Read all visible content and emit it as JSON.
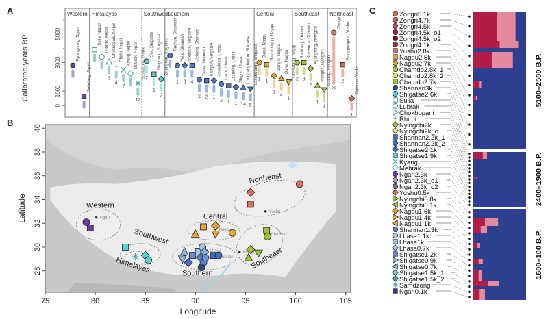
{
  "figure": {
    "panel_labels": [
      "A",
      "B",
      "C"
    ]
  },
  "chart_data": [
    {
      "panel": "A",
      "type": "scatter",
      "ylabel": "Calibrated years BP",
      "yticks": [
        0,
        1000,
        3000,
        5000
      ],
      "ylim": [
        -800,
        6800
      ],
      "regions": [
        {
          "name": "Western",
          "color": "#6a3fa0",
          "sites": [
            {
              "label": "Piyangdong, Ngari",
              "age": 2800,
              "shape": "circle",
              "n": ""
            },
            {
              "label": "Gelintang, Ngari",
              "age": 650,
              "shape": "square",
              "n": ""
            }
          ]
        },
        {
          "name": "Himalayas",
          "color": "#4aa3a0",
          "sites": [
            {
              "label": "Suila, Nepal",
              "age": 3900,
              "shape": "square-open",
              "n": ""
            },
            {
              "label": "Lubrak, Nepal",
              "age": 3400,
              "shape": "circle-open",
              "n": ""
            },
            {
              "label": "Chokhopani, Nepal",
              "age": 3050,
              "shape": "triangle-open",
              "n": "3"
            },
            {
              "label": "Rhirhi, Nepal",
              "age": 2750,
              "shape": "plus",
              "n": "4"
            },
            {
              "label": "Kyang, Nepal",
              "age": 2500,
              "shape": "cross",
              "n": "7"
            },
            {
              "label": "Mebrak, Nepal",
              "age": 2250,
              "shape": "diamond-open",
              "n": ""
            },
            {
              "label": "Samdzong, Nepal",
              "age": 1550,
              "shape": "star",
              "n": "12"
            }
          ]
        },
        {
          "name": "Southwest",
          "color": "#5ccfd6",
          "sites": [
            {
              "label": "Sila, Shigatse",
              "age": 3100,
              "shape": "circle",
              "n": "2"
            },
            {
              "label": "Dingdong, Shigatse",
              "age": 2200,
              "shape": "square",
              "n": "1"
            },
            {
              "label": "Zhangcun, Shigatse",
              "age": 1850,
              "shape": "diamond",
              "n": "2"
            }
          ]
        },
        {
          "name": "Southern",
          "color": "#4a78c8",
          "sites": [
            {
              "label": "Tingkun, Shannan",
              "age": 3500,
              "shape": "circle",
              "n": ""
            },
            {
              "label": "Yoisi, Shannan",
              "age": 2800,
              "shape": "circle",
              "n": "1"
            },
            {
              "label": "Nolaqun, Shigatse",
              "age": 2800,
              "shape": "diamond",
              "n": "3"
            },
            {
              "label": "Jiekang, Shannan",
              "age": 2800,
              "shape": "square",
              "n": "4"
            },
            {
              "label": "Dana, Shannan",
              "age": 1800,
              "shape": "circle",
              "n": "2"
            },
            {
              "label": "Rangjun, Shigatse",
              "age": 1750,
              "shape": "square",
              "n": "2"
            },
            {
              "label": "Jiewulang, Lhasa",
              "age": 1750,
              "shape": "diamond",
              "n": "1"
            },
            {
              "label": "Lajue, Lhasa",
              "age": 1500,
              "shape": "circle",
              "n": "2"
            },
            {
              "label": "Dazhong, Lhasa",
              "age": 1400,
              "shape": "square",
              "n": "1"
            },
            {
              "label": "Shigou, Lhasa",
              "age": 1300,
              "shape": "diamond",
              "n": "1"
            },
            {
              "label": "Longgangbudun, Shigatse",
              "age": 1250,
              "shape": "triangle",
              "n": "14"
            },
            {
              "label": "Lakuhudngo, Shigatse",
              "age": 1150,
              "shape": "triangle-down",
              "n": "5"
            }
          ]
        },
        {
          "name": "Central",
          "color": "#e6a73a",
          "sites": [
            {
              "label": "Ouxui, Nagqu",
              "age": 3000,
              "shape": "circle",
              "n": "1"
            },
            {
              "label": "Bulaxiongqu, Nagqu",
              "age": 2850,
              "shape": "square",
              "n": "1"
            },
            {
              "label": "Gangxi, Nagqu",
              "age": 2100,
              "shape": "diamond",
              "n": "1"
            },
            {
              "label": "Oune, Nagqu",
              "age": 1900,
              "shape": "triangle",
              "n": "4"
            },
            {
              "label": "Chasutang, Nagqu",
              "age": 1650,
              "shape": "triangle-down",
              "n": "1"
            }
          ]
        },
        {
          "name": "Southeast",
          "color": "#9cc33e",
          "sites": [
            {
              "label": "Reiblong, Chamdo",
              "age": 3000,
              "shape": "circle",
              "n": "2"
            },
            {
              "label": "Xiaoenda, Chamdo",
              "age": 3000,
              "shape": "square",
              "n": "3"
            },
            {
              "label": "Agangrong, Nyingchi",
              "age": 2600,
              "shape": "diamond",
              "n": "2"
            },
            {
              "label": "Kangmi, Nyingchi",
              "age": 1400,
              "shape": "triangle",
              "n": "1"
            },
            {
              "label": "Gulong, Nyingchi",
              "age": 1100,
              "shape": "triangle-down",
              "n": "1"
            }
          ]
        },
        {
          "name": "Northeast",
          "color": "#d9705a",
          "sites": [
            {
              "label": "Zongri",
              "age": 5100,
              "shape": "circle",
              "n": "22"
            },
            {
              "label": "Pulaggongma, Yushu",
              "age": 2850,
              "shape": "square",
              "n": "2"
            },
            {
              "label": "Galacun, Yushu",
              "age": 500,
              "shape": "diamond",
              "n": "1"
            }
          ]
        }
      ]
    },
    {
      "panel": "B",
      "type": "scatter",
      "xlabel": "Longitude",
      "ylabel": "Latitude",
      "xlim": [
        75,
        105.5
      ],
      "ylim": [
        26.2,
        40.3
      ],
      "xticks": [
        75,
        80,
        85,
        90,
        95,
        100,
        105
      ],
      "yticks": [
        28,
        30,
        32,
        34,
        36,
        38,
        40
      ],
      "region_labels": [
        {
          "name": "Western",
          "lon": 80.5,
          "lat": 33.3,
          "rot": 0
        },
        {
          "name": "Southwest",
          "lon": 85.5,
          "lat": 30.7,
          "rot": 18
        },
        {
          "name": "Himalayas",
          "lon": 83.7,
          "lat": 28.3,
          "rot": 18
        },
        {
          "name": "Central",
          "lon": 92.0,
          "lat": 32.4,
          "rot": 0
        },
        {
          "name": "Southern",
          "lon": 90.2,
          "lat": 27.6,
          "rot": 0
        },
        {
          "name": "Southeast",
          "lon": 97.2,
          "lat": 28.9,
          "rot": -30
        },
        {
          "name": "Northeast",
          "lon": 97.0,
          "lat": 35.6,
          "rot": -10
        }
      ],
      "ellipses": [
        {
          "name": "Western",
          "lon": 80.3,
          "lat": 31.9,
          "rlon": 2.2,
          "rlat": 1.3,
          "rot": 0
        },
        {
          "name": "Southwest",
          "lon": 84.5,
          "lat": 29.4,
          "rlon": 2.0,
          "rlat": 0.9,
          "rot": 0
        },
        {
          "name": "Himalayas",
          "lon": 84.1,
          "lat": 29.1,
          "rlon": 1.2,
          "rlat": 0.55,
          "rot": 0
        },
        {
          "name": "Central",
          "lon": 91.8,
          "lat": 31.4,
          "rlon": 2.6,
          "rlat": 0.8,
          "rot": 0
        },
        {
          "name": "Southern",
          "lon": 90.9,
          "lat": 29.2,
          "rlon": 3.2,
          "rlat": 1.1,
          "rot": 0
        },
        {
          "name": "Southeast",
          "lon": 96.4,
          "lat": 30.2,
          "rlon": 2.4,
          "rlat": 1.6,
          "rot": -30
        },
        {
          "name": "Northeast",
          "lon": 97.4,
          "lat": 34.1,
          "rlon": 3.6,
          "rlat": 1.4,
          "rot": -12
        }
      ],
      "cities": [
        {
          "name": "Ngari",
          "lon": 80.1,
          "lat": 32.5
        },
        {
          "name": "Shigatse",
          "lon": 88.9,
          "lat": 29.3
        },
        {
          "name": "Lhasa",
          "lon": 91.1,
          "lat": 29.7
        },
        {
          "name": "Shannan",
          "lon": 91.8,
          "lat": 29.2
        },
        {
          "name": "Nagqu",
          "lon": 92.0,
          "lat": 31.5
        },
        {
          "name": "Nyingchi",
          "lon": 94.4,
          "lat": 29.6
        },
        {
          "name": "Chamdo",
          "lon": 97.2,
          "lat": 31.1
        },
        {
          "name": "Yushu",
          "lon": 97.0,
          "lat": 33.0
        }
      ],
      "points": [
        {
          "lon": 79.1,
          "lat": 32.1,
          "shape": "circle",
          "color": "#6a3fa0"
        },
        {
          "lon": 79.5,
          "lat": 31.6,
          "shape": "square",
          "color": "#6a3fa0"
        },
        {
          "lon": 83.0,
          "lat": 30.0,
          "shape": "square",
          "color": "#5ccfd6"
        },
        {
          "lon": 84.0,
          "lat": 29.2,
          "shape": "star",
          "color": "#4aa3a0"
        },
        {
          "lon": 85.0,
          "lat": 29.3,
          "shape": "diamond",
          "color": "#5ccfd6"
        },
        {
          "lon": 85.3,
          "lat": 28.9,
          "shape": "circle",
          "color": "#5ccfd6"
        },
        {
          "lon": 88.9,
          "lat": 29.6,
          "shape": "triangle",
          "color": "#8ab8e0"
        },
        {
          "lon": 88.7,
          "lat": 29.0,
          "shape": "triangle-down",
          "color": "#8ab8e0"
        },
        {
          "lon": 89.3,
          "lat": 28.7,
          "shape": "diamond",
          "color": "#3f6fc4"
        },
        {
          "lon": 89.7,
          "lat": 29.3,
          "shape": "square",
          "color": "#6f86d8"
        },
        {
          "lon": 90.3,
          "lat": 29.6,
          "shape": "square",
          "color": "#9cc7e3"
        },
        {
          "lon": 90.7,
          "lat": 30.0,
          "shape": "circle",
          "color": "#9cc7e3"
        },
        {
          "lon": 90.9,
          "lat": 29.6,
          "shape": "diamond",
          "color": "#8ab0e0"
        },
        {
          "lon": 90.5,
          "lat": 29.1,
          "shape": "diamond",
          "color": "#5a7fd0"
        },
        {
          "lon": 90.8,
          "lat": 28.7,
          "shape": "circle",
          "color": "#5a7fd0"
        },
        {
          "lon": 91.0,
          "lat": 29.1,
          "shape": "circle",
          "color": "#7b8fe0"
        },
        {
          "lon": 90.6,
          "lat": 28.3,
          "shape": "circle",
          "color": "#2b4e78"
        },
        {
          "lon": 91.8,
          "lat": 29.3,
          "shape": "square",
          "color": "#3f6fc4"
        },
        {
          "lon": 92.3,
          "lat": 29.3,
          "shape": "circle",
          "color": "#3f6fc4"
        },
        {
          "lon": 90.0,
          "lat": 31.1,
          "shape": "triangle",
          "color": "#e6a73a"
        },
        {
          "lon": 90.8,
          "lat": 31.7,
          "shape": "square",
          "color": "#e6a73a"
        },
        {
          "lon": 92.0,
          "lat": 31.8,
          "shape": "diamond",
          "color": "#e6a73a"
        },
        {
          "lon": 92.0,
          "lat": 31.1,
          "shape": "triangle-down",
          "color": "#e6a73a"
        },
        {
          "lon": 93.7,
          "lat": 31.2,
          "shape": "circle",
          "color": "#e6a73a"
        },
        {
          "lon": 97.1,
          "lat": 31.4,
          "shape": "square",
          "color": "#9cc33e"
        },
        {
          "lon": 97.2,
          "lat": 30.9,
          "shape": "circle",
          "color": "#9cc33e"
        },
        {
          "lon": 95.5,
          "lat": 29.8,
          "shape": "diamond",
          "color": "#9cc33e"
        },
        {
          "lon": 96.3,
          "lat": 29.5,
          "shape": "triangle-down",
          "color": "#9cc33e"
        },
        {
          "lon": 95.3,
          "lat": 29.1,
          "shape": "triangle",
          "color": "#9cc33e"
        },
        {
          "lon": 95.5,
          "lat": 34.6,
          "shape": "diamond",
          "color": "#d9705a"
        },
        {
          "lon": 95.5,
          "lat": 33.6,
          "shape": "square",
          "color": "#d9705a"
        },
        {
          "lon": 100.4,
          "lat": 35.3,
          "shape": "circle",
          "color": "#d9705a"
        }
      ]
    },
    {
      "panel": "C",
      "type": "bar",
      "orientation": "horizontal-stacked",
      "period_labels": [
        "5100–2500 B.P.",
        "2400–1900 B.P.",
        "1600–100 B.P."
      ],
      "components": [
        "ancestry-navy",
        "ancestry-crimson",
        "ancestry-pink",
        "ancestry-grey",
        "ancestry-cream"
      ],
      "component_colors": [
        "#2e3f8f",
        "#b01e48",
        "#e48aa0",
        "#6e6e6e",
        "#f2e0b0"
      ],
      "samples": [
        {
          "label": "Zongri5.1k",
          "shape": "circle",
          "color": "#c9705a"
        },
        {
          "label": "Zongri4.7k",
          "shape": "circle",
          "color": "#c0605a"
        },
        {
          "label": "Zongri4.5k",
          "shape": "circle",
          "color": "#b85060"
        },
        {
          "label": "Zongri4.5k_o1",
          "shape": "circle",
          "color": "#a81e38"
        },
        {
          "label": "Zongri4.5k_o2",
          "shape": "circle",
          "color": "#5a1a28"
        },
        {
          "label": "Zongri4.1k",
          "shape": "circle",
          "color": "#8a3a3a"
        },
        {
          "label": "Yushu2.8k",
          "shape": "square",
          "color": "#c86a6a"
        },
        {
          "label": "Nagqu2.5k",
          "shape": "square",
          "color": "#e6a73a"
        },
        {
          "label": "Nagqu2.7k",
          "shape": "circle",
          "color": "#e6a73a"
        },
        {
          "label": "Chamdo2.8k_1",
          "shape": "circle",
          "color": "#9cc33e"
        },
        {
          "label": "Chamdo2.8k_2",
          "shape": "circle",
          "color": "#d6ea7a"
        },
        {
          "label": "Chamdo2.7k",
          "shape": "square",
          "color": "#9cc33e"
        },
        {
          "label": "Shannan3k",
          "shape": "circle",
          "color": "#2b4e78"
        },
        {
          "label": "Shigatse2.6k",
          "shape": "circle",
          "color": "#5ccfd6"
        },
        {
          "label": "Suila",
          "shape": "square-open",
          "color": "#4aa3a0"
        },
        {
          "label": "Lubrak",
          "shape": "circle-open",
          "color": "#4aa3a0"
        },
        {
          "label": "Chokhopani",
          "shape": "triangle-right-open",
          "color": "#4aa3a0"
        },
        {
          "label": "Rhirhi",
          "shape": "plus",
          "color": "#4aa3a0"
        },
        {
          "label": "Nyingchi2k",
          "shape": "diamond",
          "color": "#9cc33e"
        },
        {
          "label": "Nyingchi2k_o",
          "shape": "diamond",
          "color": "#d6ea7a"
        },
        {
          "label": "Shannan2.2k_1",
          "shape": "square",
          "color": "#3f6fc4"
        },
        {
          "label": "Shannan2.2k_2",
          "shape": "circle",
          "color": "#3f6fc4"
        },
        {
          "label": "Shigatse2.1k",
          "shape": "diamond",
          "color": "#3f6fc4"
        },
        {
          "label": "Shigatse1.9k",
          "shape": "square",
          "color": "#5ccfd6"
        },
        {
          "label": "Kyang",
          "shape": "cross",
          "color": "#4aa3a0"
        },
        {
          "label": "Mebrak",
          "shape": "diamond-open",
          "color": "#5ccfd6"
        },
        {
          "label": "Ngari2.3k",
          "shape": "circle",
          "color": "#6a3fa0"
        },
        {
          "label": "Ngari2.3k_o1",
          "shape": "circle",
          "color": "#b89ad0"
        },
        {
          "label": "Ngari2.3k_o2",
          "shape": "circle",
          "color": "#7a6888"
        },
        {
          "label": "Yushu0.5k",
          "shape": "diamond",
          "color": "#d9705a"
        },
        {
          "label": "Nyingchi0.8k",
          "shape": "triangle-right",
          "color": "#9cc33e"
        },
        {
          "label": "Nyingchi0.1k",
          "shape": "triangle-left",
          "color": "#9cc33e"
        },
        {
          "label": "Nagqu1.6k",
          "shape": "diamond",
          "color": "#e6a73a"
        },
        {
          "label": "Nagqu1.4k",
          "shape": "triangle-right",
          "color": "#e6a73a"
        },
        {
          "label": "Nagqu1.1k",
          "shape": "triangle-left",
          "color": "#e6a73a"
        },
        {
          "label": "Shannan1.3k",
          "shape": "circle",
          "color": "#5a7fd0"
        },
        {
          "label": "Lhasa1.1k",
          "shape": "circle",
          "color": "#9cc7e3"
        },
        {
          "label": "Lhasa1k",
          "shape": "square",
          "color": "#9cc7e3"
        },
        {
          "label": "Lhasa0.7k",
          "shape": "diamond",
          "color": "#9cc7e3"
        },
        {
          "label": "Shigatse1.2k",
          "shape": "square",
          "color": "#6f86d8"
        },
        {
          "label": "Shigatse0.9k",
          "shape": "triangle-right",
          "color": "#8ab8e0"
        },
        {
          "label": "Shigatse0.7k",
          "shape": "triangle-left",
          "color": "#8ab8e0"
        },
        {
          "label": "Shigatse1.5k_1",
          "shape": "diamond",
          "color": "#5ccfd6"
        },
        {
          "label": "Shigatse1.5k_2",
          "shape": "diamond",
          "color": "#4aa3a0"
        },
        {
          "label": "Samdzong",
          "shape": "star",
          "color": "#4aa3a0"
        },
        {
          "label": "Ngari0.1k",
          "shape": "square",
          "color": "#4a2a8a"
        }
      ]
    }
  ]
}
